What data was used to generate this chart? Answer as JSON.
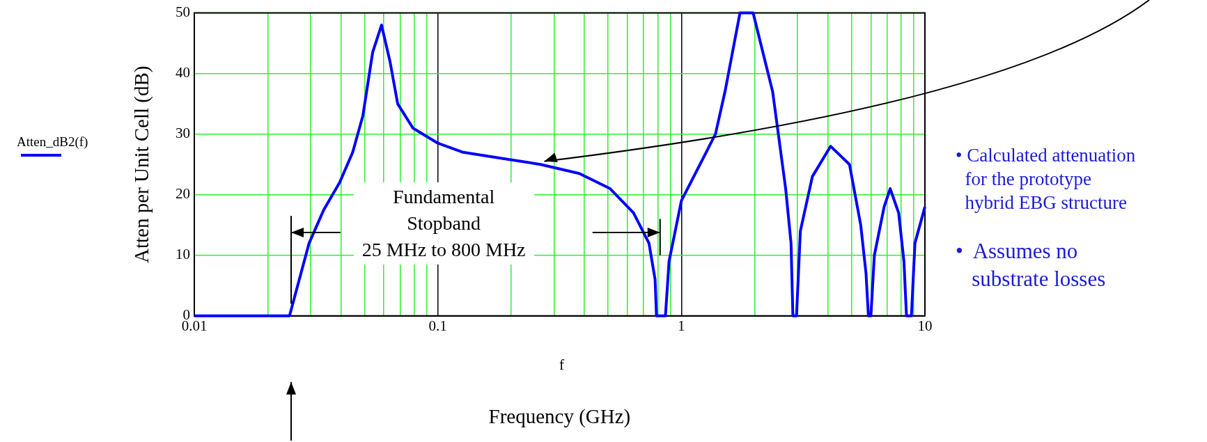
{
  "chart_data": {
    "type": "line",
    "ylabel": "Atten per Unit Cell (dB)",
    "xlabel": "f",
    "log": "x",
    "grid": true,
    "legend": "left",
    "marker": "none",
    "line_style": "solid",
    "xlim": [
      0.01,
      10
    ],
    "ylim": [
      0,
      50
    ],
    "xticks": [
      0.01,
      {
        "value": 0.02,
        "label": null
      },
      {
        "value": 0.03,
        "label": null
      },
      {
        "value": 0.04,
        "label": null
      },
      {
        "value": 0.05,
        "label": null
      },
      {
        "value": 0.06,
        "label": null
      },
      {
        "value": 0.07,
        "label": null
      },
      {
        "value": 0.08,
        "label": null
      },
      {
        "value": 0.09,
        "label": null
      },
      0.1,
      {
        "value": 0.2,
        "label": null
      },
      {
        "value": 0.3,
        "label": null
      },
      {
        "value": 0.4,
        "label": null
      },
      {
        "value": 0.5,
        "label": null
      },
      {
        "value": 0.6,
        "label": null
      },
      {
        "value": 0.7,
        "label": null
      },
      {
        "value": 0.8,
        "label": null
      },
      {
        "value": 0.9,
        "label": null
      },
      1,
      {
        "value": 2,
        "label": null
      },
      {
        "value": 3,
        "label": null
      },
      {
        "value": 4,
        "label": null
      },
      {
        "value": 5,
        "label": null
      },
      {
        "value": 6,
        "label": null
      },
      {
        "value": 7,
        "label": null
      },
      {
        "value": 8,
        "label": null
      },
      {
        "value": 9,
        "label": null
      },
      10
    ],
    "yticks": [
      0,
      10,
      20,
      30,
      40,
      50
    ],
    "series": [
      {
        "name": "Atten_dB2(f)",
        "color": "#0000ff",
        "x": [
          0.01,
          0.0246,
          0.0296,
          0.034,
          0.0395,
          0.0447,
          0.0492,
          0.054,
          0.0587,
          0.0636,
          0.0684,
          0.079,
          0.1,
          0.127,
          0.183,
          0.264,
          0.381,
          0.51,
          0.636,
          0.736,
          0.78,
          0.79,
          0.86,
          0.89,
          1.0,
          1.38,
          1.51,
          1.74,
          1.97,
          2.37,
          2.68,
          2.82,
          2.87,
          2.97,
          3.08,
          3.45,
          4.1,
          4.9,
          5.45,
          5.73,
          5.86,
          6.0,
          6.2,
          6.8,
          7.2,
          7.8,
          8.2,
          8.4,
          8.8,
          9.1,
          10
        ],
        "values": [
          0,
          0,
          12,
          17.5,
          22,
          27,
          33,
          43.5,
          48,
          42,
          35,
          31,
          28.5,
          27,
          26,
          25,
          23.5,
          21,
          17,
          12,
          6,
          0,
          0,
          9,
          19,
          30,
          37,
          50,
          50,
          37,
          21,
          12,
          0,
          0,
          14,
          23,
          28,
          25,
          15,
          7,
          0,
          0,
          10,
          18,
          21,
          17,
          9,
          0,
          0,
          12,
          18
        ]
      }
    ],
    "annotations": [
      "Fundamental\nStopband\n25 MHz to 800 MHz",
      "Frequency (GHz)",
      "• Calculated attenuation\n  for the prototype\n  hybrid EBG structure",
      "•  Assumes no\n   substrate losses"
    ]
  }
}
